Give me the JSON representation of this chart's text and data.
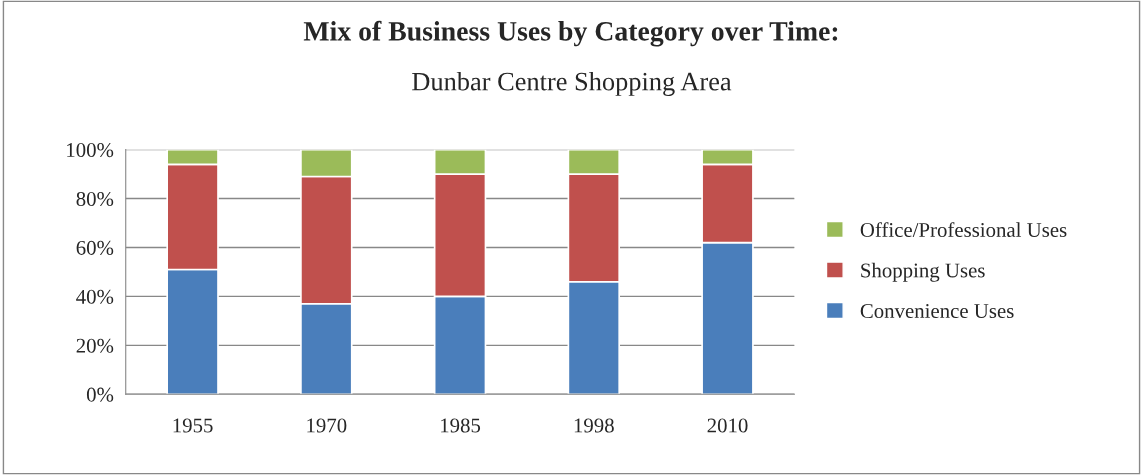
{
  "chart_data": {
    "type": "bar",
    "stacked": true,
    "title": "Mix of Business Uses by Category over Time:",
    "subtitle": "Dunbar Centre Shopping Area",
    "categories": [
      "1955",
      "1970",
      "1985",
      "1998",
      "2010"
    ],
    "series": [
      {
        "name": "Convenience Uses",
        "color": "#4a7ebb",
        "values": [
          51,
          37,
          40,
          46,
          62
        ]
      },
      {
        "name": "Shopping Uses",
        "color": "#c0504d",
        "values": [
          43,
          52,
          50,
          44,
          32
        ]
      },
      {
        "name": "Office/Professional Uses",
        "color": "#9bbb59",
        "values": [
          6,
          11,
          10,
          10,
          6
        ]
      }
    ],
    "ylim": [
      0,
      100
    ],
    "yticks": [
      {
        "value": 0,
        "label": "0%"
      },
      {
        "value": 20,
        "label": "20%"
      },
      {
        "value": 40,
        "label": "40%"
      },
      {
        "value": 60,
        "label": "60%"
      },
      {
        "value": 80,
        "label": "80%"
      },
      {
        "value": 100,
        "label": "100%"
      }
    ],
    "grid": "y",
    "legend": "right"
  }
}
